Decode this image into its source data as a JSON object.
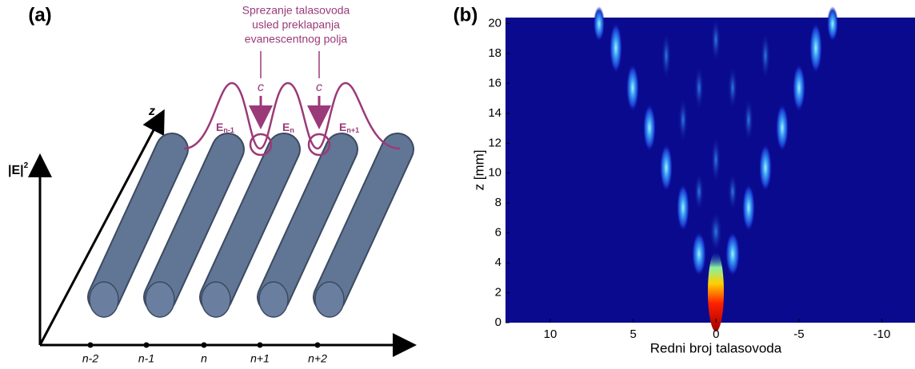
{
  "panel_a": {
    "label": "(a)",
    "annotation": [
      "Sprezanje talasovoda",
      "usled preklapanja",
      "evanescentnog polja"
    ],
    "coupling": [
      "c",
      "c"
    ],
    "z_axis": "z",
    "e_axis": {
      "main": "|E|",
      "sup": "2"
    },
    "fields": [
      {
        "main": "E",
        "sub": "n-1"
      },
      {
        "main": "E",
        "sub": "n"
      },
      {
        "main": "E",
        "sub": "n+1"
      }
    ],
    "positions": [
      "n-2",
      "n-1",
      "n",
      "n+1",
      "n+2"
    ]
  },
  "chart_data": {
    "type": "heatmap",
    "label": "(b)",
    "x_label": "Redni broj talasovoda",
    "y_label": "z [mm]",
    "xlim": [
      12.7,
      -12.0
    ],
    "ylim": [
      0,
      20.4
    ],
    "xticks": [
      10,
      5,
      0,
      -5,
      -10
    ],
    "yticks": [
      0,
      2,
      4,
      6,
      8,
      10,
      12,
      14,
      16,
      18,
      20
    ]
  }
}
